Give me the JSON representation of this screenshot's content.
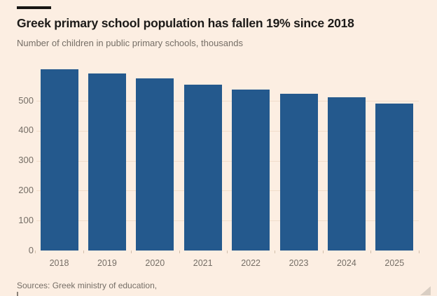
{
  "header": {
    "title": "Greek primary school population has fallen 19% since 2018",
    "subtitle": "Number of children in public primary schools, thousands"
  },
  "chart_data": {
    "type": "bar",
    "categories": [
      "2018",
      "2019",
      "2020",
      "2021",
      "2022",
      "2023",
      "2024",
      "2025"
    ],
    "values": [
      605,
      591,
      575,
      554,
      537,
      523,
      512,
      491
    ],
    "title": "Greek primary school population has fallen 19% since 2018",
    "subtitle": "Number of children in public primary schools, thousands",
    "xlabel": "",
    "ylabel": "",
    "yticks": [
      0,
      100,
      200,
      300,
      400,
      500
    ],
    "ylim": [
      0,
      620
    ],
    "grid": true,
    "legend": false,
    "bar_color": "#24598d"
  },
  "footer": {
    "source_label": "Sources: Greek ministry of education,"
  },
  "colors": {
    "bg": "#fceee2",
    "bar": "#24598d",
    "title": "#1c1a18",
    "muted": "#756e66",
    "grid": "#f1ddca",
    "tick": "#d2bfab",
    "rule": "#181613",
    "handle": "#b0a79d"
  }
}
